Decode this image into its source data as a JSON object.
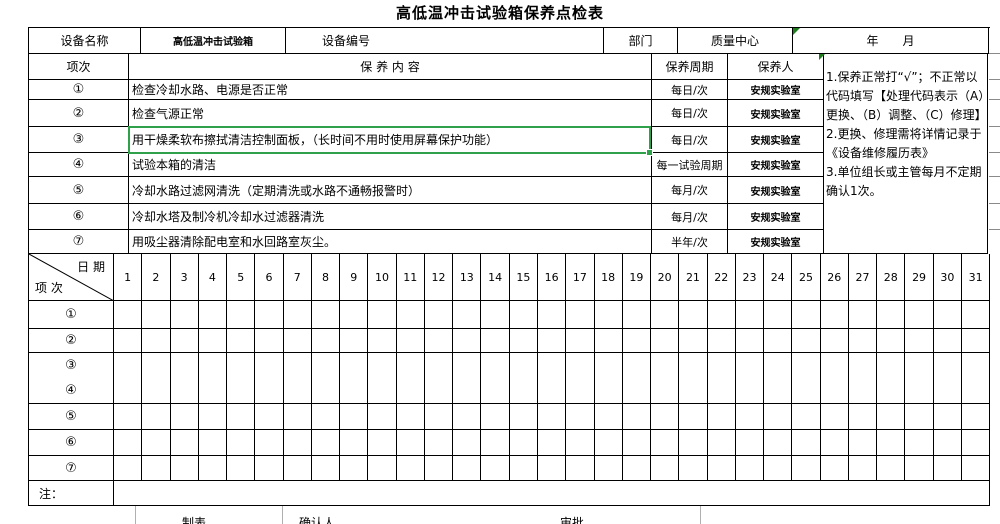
{
  "title": "高低温冲击试验箱保养点检表",
  "header": {
    "device_name_label": "设备名称",
    "device_name_value": "高低温冲击试验箱",
    "device_no_label": "设备编号",
    "dept_label": "部门",
    "dept_value": "质量中心",
    "year_month_label": "年　　月"
  },
  "content_table": {
    "col_item": "项次",
    "col_content": "保 养 内 容",
    "col_cycle": "保养周期",
    "col_person": "保养人",
    "rows": [
      {
        "no": "①",
        "content": "检查冷却水路、电源是否正常",
        "cycle": "每日/次",
        "person": "安规实验室",
        "selected": false
      },
      {
        "no": "②",
        "content": "检查气源正常",
        "cycle": "每日/次",
        "person": "安规实验室",
        "selected": false
      },
      {
        "no": "③",
        "content": "用干燥柔软布擦拭清洁控制面板，（长时间不用时使用屏幕保护功能）",
        "cycle": "每日/次",
        "person": "安规实验室",
        "selected": true
      },
      {
        "no": "④",
        "content": "试验本箱的清洁",
        "cycle": "每一试验周期",
        "person": "安规实验室",
        "selected": false
      },
      {
        "no": "⑤",
        "content": "冷却水路过滤网清洗（定期清洗或水路不通畅报警时）",
        "cycle": "每月/次",
        "person": "安规实验室",
        "selected": false
      },
      {
        "no": "⑥",
        "content": "冷却水塔及制冷机冷却水过滤器清洗",
        "cycle": "每月/次",
        "person": "安规实验室",
        "selected": false
      },
      {
        "no": "⑦",
        "content": "用吸尘器清除配电室和水回路室灰尘。",
        "cycle": "半年/次",
        "person": "安规实验室",
        "selected": false
      }
    ]
  },
  "notes": [
    "1.保养正常打“√”；不正常以代码填写【处理代码表示（A）更换、（B）调整、（C）修理】",
    "2.更换、修理需将详情记录于《设备维修履历表》",
    "3.单位组长或主管每月不定期确认1次。"
  ],
  "date_grid": {
    "date_label": "日 期",
    "item_label": "项 次",
    "days": [
      1,
      2,
      3,
      4,
      5,
      6,
      7,
      8,
      9,
      10,
      11,
      12,
      13,
      14,
      15,
      16,
      17,
      18,
      19,
      20,
      21,
      22,
      23,
      24,
      25,
      26,
      27,
      28,
      29,
      30,
      31
    ],
    "row_groups": [
      [
        "①"
      ],
      [
        "②"
      ],
      [
        "③",
        "④"
      ],
      [
        "⑤"
      ],
      [
        "⑥"
      ],
      [
        "⑦"
      ]
    ],
    "note_label": "注："
  },
  "footer": {
    "labels": [
      "制表",
      "确认人",
      "审批"
    ]
  },
  "colors": {
    "selection_green": "#2fa14a",
    "marker_green": "#1e7e1e"
  }
}
